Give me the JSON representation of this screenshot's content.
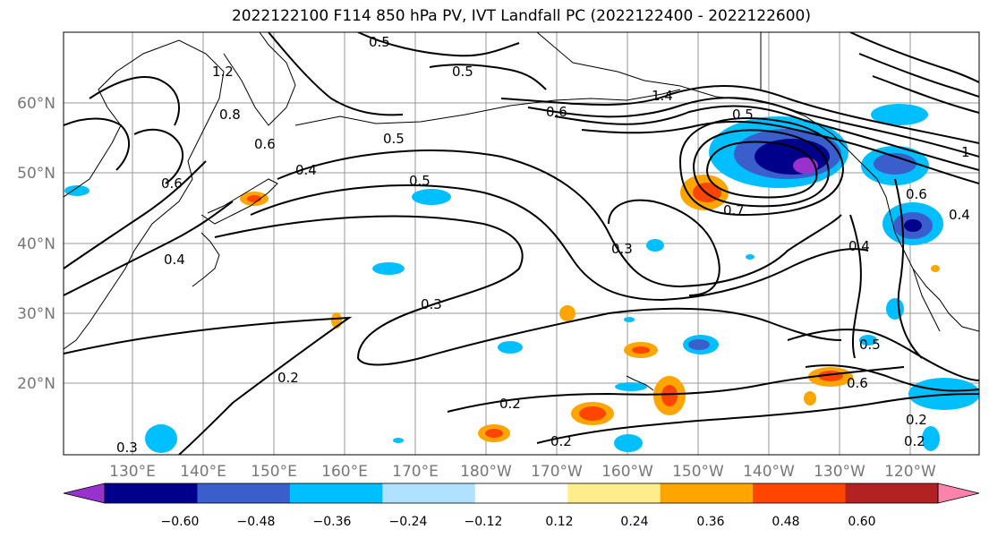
{
  "title": "2022122100 F114 850 hPa PV, IVT Landfall PC (2022122400 - 2022122600)",
  "map": {
    "lon_labels": [
      "130°E",
      "140°E",
      "150°E",
      "160°E",
      "170°E",
      "180°W",
      "170°W",
      "160°W",
      "150°W",
      "140°W",
      "130°W",
      "120°W"
    ],
    "lat_labels": [
      "60°N",
      "50°N",
      "40°N",
      "30°N",
      "20°N"
    ],
    "contour_labels": [
      "0.5",
      "0.5",
      "0.5",
      "0.5",
      "0.5",
      "0.6",
      "0.6",
      "0.6",
      "0.7",
      "0.4",
      "0.4",
      "0.4",
      "0.3",
      "0.3",
      "0.3",
      "0.2",
      "0.2",
      "0.2",
      "0.2",
      "0.2",
      "0.6",
      "0.5",
      "1.4",
      "1.2",
      "0.8",
      "0.6",
      "0.4",
      "1"
    ]
  },
  "colorbar": {
    "tick_labels": [
      "−0.60",
      "−0.48",
      "−0.36",
      "−0.24",
      "−0.12",
      "0.12",
      "0.24",
      "0.36",
      "0.48",
      "0.60"
    ],
    "colors": [
      "#9932cc",
      "#00008b",
      "#3a5fcd",
      "#00bfff",
      "#b0e2ff",
      "#ffffff",
      "#ffec8b",
      "#ffa500",
      "#ff4500",
      "#b22222",
      "#ff82ab"
    ]
  }
}
